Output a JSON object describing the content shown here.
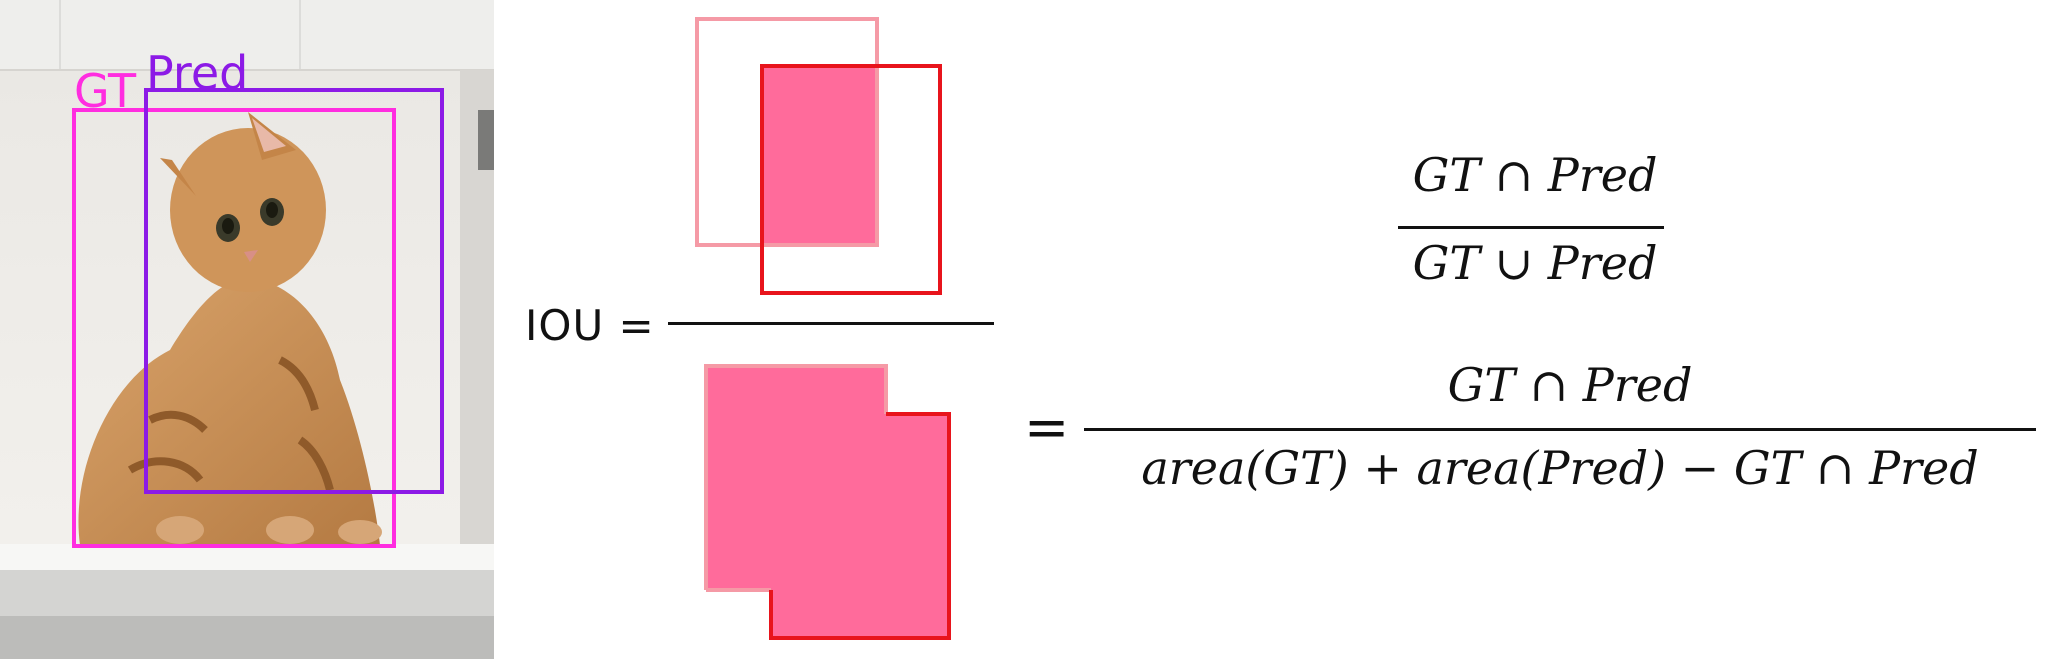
{
  "photo": {
    "gt_label": "GT",
    "pred_label": "Pred",
    "colors": {
      "gt": "#ff2de0",
      "pred": "#8c1ae6"
    }
  },
  "diagram": {
    "iou_label": "IOU =",
    "colors": {
      "fill": "#ff6b9b",
      "gt_outline": "#f59aa6",
      "pred_outline": "#e8141c"
    }
  },
  "formula1": {
    "numerator": "GT ∩ Pred",
    "denominator": "GT ∪ Pred"
  },
  "formula2": {
    "equals": "=",
    "numerator": "GT ∩ Pred",
    "denominator": "area(GT) + area(Pred) − GT ∩ Pred"
  }
}
